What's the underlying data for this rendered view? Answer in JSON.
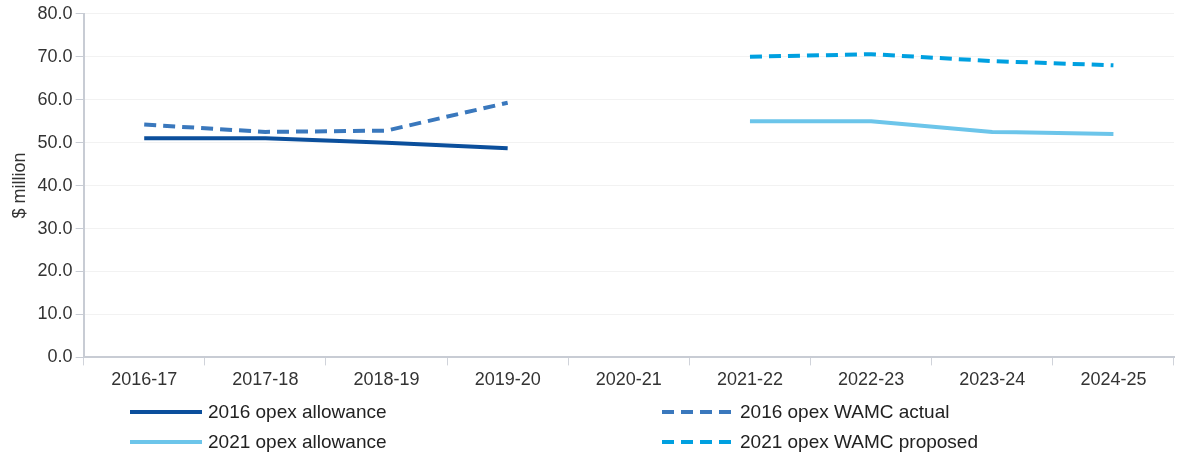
{
  "chart_data": {
    "type": "line",
    "ylabel": "$ million",
    "categories": [
      "2016-17",
      "2017-18",
      "2018-19",
      "2019-20",
      "2020-21",
      "2021-22",
      "2022-23",
      "2023-24",
      "2024-25"
    ],
    "series": [
      {
        "name": "2016 opex allowance",
        "color": "#0b4f9c",
        "line_style": "solid",
        "values": [
          51.0,
          51.0,
          50.0,
          48.7,
          null,
          null,
          null,
          null,
          null
        ]
      },
      {
        "name": "2016 opex WAMC actual",
        "color": "#3a78bd",
        "line_style": "dashed",
        "values": [
          54.2,
          52.5,
          52.8,
          59.3,
          null,
          null,
          null,
          null,
          null
        ]
      },
      {
        "name": "2021 opex allowance",
        "color": "#6cc5ea",
        "line_style": "solid",
        "values": [
          null,
          null,
          null,
          null,
          null,
          55.0,
          55.0,
          52.5,
          52.0
        ]
      },
      {
        "name": "2021 opex WAMC proposed",
        "color": "#00a0e0",
        "line_style": "dashed",
        "values": [
          null,
          null,
          null,
          null,
          null,
          70.0,
          70.6,
          69.0,
          68.0
        ]
      }
    ],
    "ylim": [
      0,
      80
    ],
    "yticks": [
      {
        "value": 0,
        "label": "0.0"
      },
      {
        "value": 10,
        "label": "10.0"
      },
      {
        "value": 20,
        "label": "20.0"
      },
      {
        "value": 30,
        "label": "30.0"
      },
      {
        "value": 40,
        "label": "40.0"
      },
      {
        "value": 50,
        "label": "50.0"
      },
      {
        "value": 60,
        "label": "60.0"
      },
      {
        "value": 70,
        "label": "70.0"
      },
      {
        "value": 80,
        "label": "80.0"
      }
    ],
    "grid": "y",
    "legend": "bottom",
    "marker": "none"
  }
}
